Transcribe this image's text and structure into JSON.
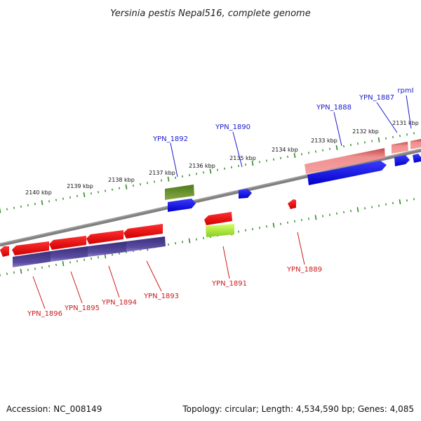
{
  "title": "Yersinia pestis Nepal516, complete genome",
  "footer": {
    "accession": "Accession: NC_008149",
    "topology": "Topology: circular; Length: 4,534,590 bp; Genes: 4,085"
  },
  "colors": {
    "backbone": "#808080",
    "ticks": "#2e8b22",
    "forward_label": "#1a1acc",
    "reverse_label": "#cc1a1a"
  },
  "kbp_labels": [
    "2131 kbp",
    "2132 kbp",
    "2133 kbp",
    "2134 kbp",
    "2135 kbp",
    "2136 kbp",
    "2137 kbp",
    "2138 kbp",
    "2139 kbp",
    "2140 kbp"
  ],
  "genes_forward": [
    {
      "name": "rpmI",
      "color": "#1a1acc"
    },
    {
      "name": "YPN_1887",
      "color": "#1a1acc"
    },
    {
      "name": "YPN_1888",
      "color": "#1a1acc"
    },
    {
      "name": "YPN_1890",
      "color": "#1a1acc"
    },
    {
      "name": "YPN_1892",
      "color": "#1a1acc"
    }
  ],
  "genes_reverse": [
    {
      "name": "YPN_1889",
      "color": "#cc1a1a"
    },
    {
      "name": "YPN_1891",
      "color": "#cc1a1a"
    },
    {
      "name": "YPN_1893",
      "color": "#cc1a1a"
    },
    {
      "name": "YPN_1894",
      "color": "#cc1a1a"
    },
    {
      "name": "YPN_1895",
      "color": "#cc1a1a"
    },
    {
      "name": "YPN_1896",
      "color": "#cc1a1a"
    }
  ]
}
